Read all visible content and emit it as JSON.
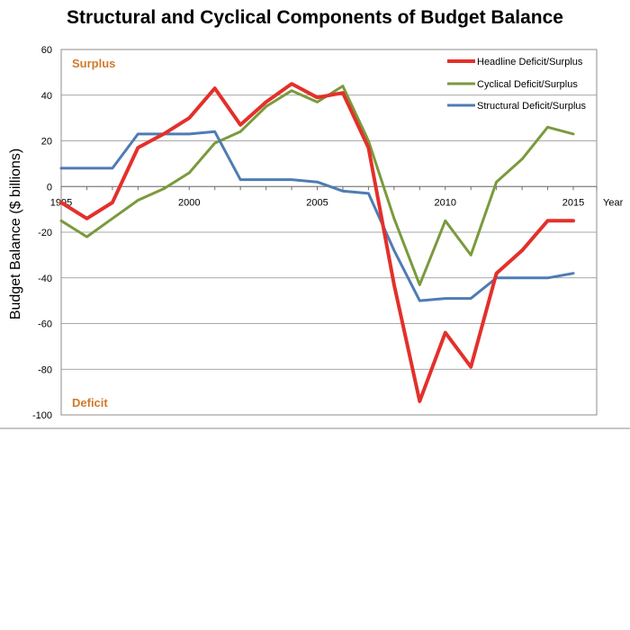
{
  "chart_data": {
    "type": "line",
    "title": "Structural and Cyclical Components of Budget Balance",
    "xlabel": "Year",
    "ylabel": "Budget Balance ($ billions)",
    "xlim": [
      1995,
      2016
    ],
    "ylim": [
      -100,
      60
    ],
    "x_ticks": [
      "1995",
      "2000",
      "2005",
      "2010",
      "2015"
    ],
    "y_ticks": [
      "60",
      "40",
      "20",
      "0",
      "-20",
      "-40",
      "-60",
      "-80",
      "-100"
    ],
    "grid": true,
    "legend_position": "top-right",
    "annotations": {
      "surplus": "Surplus",
      "deficit": "Deficit"
    },
    "x": [
      1995,
      1996,
      1997,
      1998,
      1999,
      2000,
      2001,
      2002,
      2003,
      2004,
      2005,
      2006,
      2007,
      2008,
      2009,
      2010,
      2011,
      2012,
      2013,
      2014,
      2015
    ],
    "series": [
      {
        "name": "Headline Deficit/Surplus",
        "color": "#e3302b",
        "values": [
          -7,
          -14,
          -7,
          17,
          23,
          30,
          43,
          27,
          37,
          45,
          39,
          41,
          17,
          -43,
          -94,
          -64,
          -79,
          -38,
          -28,
          -15,
          -15
        ]
      },
      {
        "name": "Cyclical Deficit/Surplus",
        "color": "#7a9a3c",
        "values": [
          -15,
          -22,
          -14,
          -6,
          -1,
          6,
          19,
          24,
          35,
          42,
          37,
          44,
          20,
          -14,
          -43,
          -15,
          -30,
          2,
          12,
          26,
          23
        ]
      },
      {
        "name": "Structural Deficit/Surplus",
        "color": "#4f7cb3",
        "values": [
          8,
          8,
          8,
          23,
          23,
          23,
          24,
          3,
          3,
          3,
          2,
          -2,
          -3,
          -28,
          -50,
          -49,
          -49,
          -40,
          -40,
          -40,
          -38
        ]
      }
    ]
  }
}
